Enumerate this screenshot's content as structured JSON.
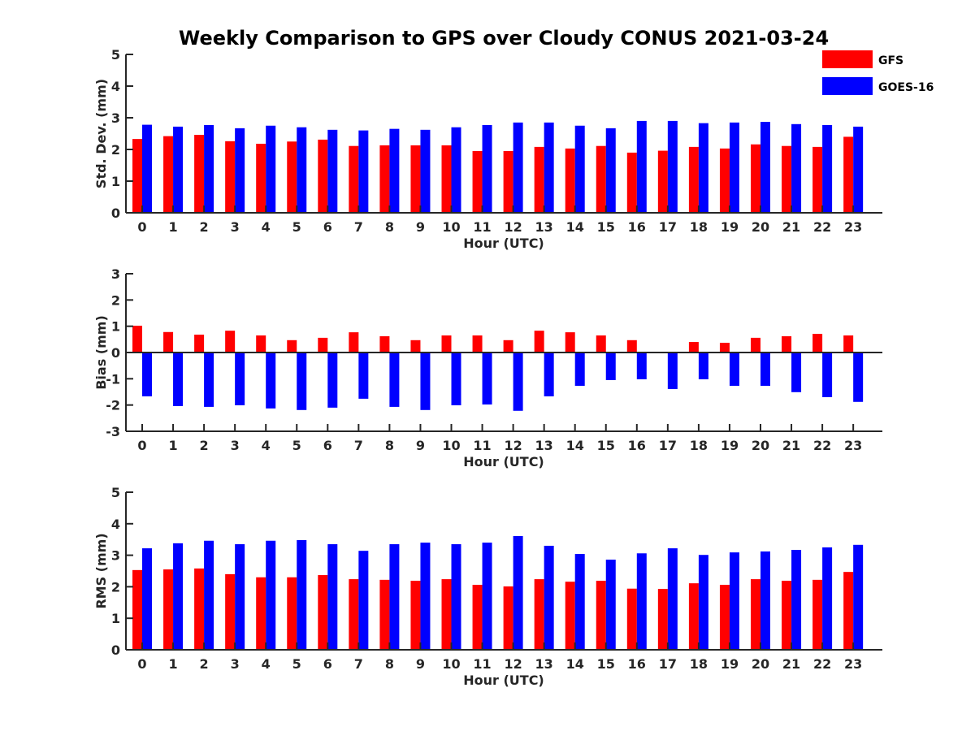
{
  "title": "Weekly Comparison to GPS over Cloudy CONUS 2021-03-24",
  "legend": [
    {
      "name": "GFS",
      "color": "#ff0000"
    },
    {
      "name": "GOES-16",
      "color": "#0000ff"
    }
  ],
  "chart_data": [
    {
      "type": "bar",
      "xlabel": "Hour (UTC)",
      "ylabel": "Std. Dev. (mm)",
      "ylim": [
        0,
        5
      ],
      "yticks": [
        0,
        1,
        2,
        3,
        4,
        5
      ],
      "categories": [
        "0",
        "1",
        "2",
        "3",
        "4",
        "5",
        "6",
        "7",
        "8",
        "9",
        "10",
        "11",
        "12",
        "13",
        "14",
        "15",
        "16",
        "17",
        "18",
        "19",
        "20",
        "21",
        "22",
        "23"
      ],
      "series": [
        {
          "name": "GFS",
          "color": "#ff0000",
          "values": [
            2.33,
            2.42,
            2.46,
            2.26,
            2.18,
            2.25,
            2.31,
            2.11,
            2.13,
            2.13,
            2.13,
            1.95,
            1.95,
            2.08,
            2.03,
            2.11,
            1.9,
            1.96,
            2.08,
            2.03,
            2.16,
            2.11,
            2.08,
            2.4
          ]
        },
        {
          "name": "GOES-16",
          "color": "#0000ff",
          "values": [
            2.78,
            2.72,
            2.77,
            2.67,
            2.75,
            2.7,
            2.62,
            2.6,
            2.65,
            2.62,
            2.7,
            2.77,
            2.85,
            2.85,
            2.75,
            2.67,
            2.9,
            2.9,
            2.83,
            2.85,
            2.87,
            2.8,
            2.77,
            2.72
          ]
        }
      ]
    },
    {
      "type": "bar",
      "xlabel": "Hour (UTC)",
      "ylabel": "Bias (mm)",
      "ylim": [
        -3,
        3
      ],
      "yticks": [
        -3,
        -2,
        -1,
        0,
        1,
        2,
        3
      ],
      "categories": [
        "0",
        "1",
        "2",
        "3",
        "4",
        "5",
        "6",
        "7",
        "8",
        "9",
        "10",
        "11",
        "12",
        "13",
        "14",
        "15",
        "16",
        "17",
        "18",
        "19",
        "20",
        "21",
        "22",
        "23"
      ],
      "series": [
        {
          "name": "GFS",
          "color": "#ff0000",
          "values": [
            1.02,
            0.78,
            0.68,
            0.83,
            0.65,
            0.47,
            0.56,
            0.77,
            0.62,
            0.47,
            0.65,
            0.65,
            0.47,
            0.83,
            0.77,
            0.65,
            0.47,
            0.02,
            0.4,
            0.37,
            0.56,
            0.62,
            0.71,
            0.65
          ]
        },
        {
          "name": "GOES-16",
          "color": "#0000ff",
          "values": [
            -1.67,
            -2.04,
            -2.07,
            -2.01,
            -2.13,
            -2.19,
            -2.1,
            -1.76,
            -2.07,
            -2.19,
            -2.01,
            -1.98,
            -2.22,
            -1.67,
            -1.27,
            -1.05,
            -1.02,
            -1.39,
            -1.02,
            -1.27,
            -1.27,
            -1.51,
            -1.7,
            -1.88
          ]
        }
      ]
    },
    {
      "type": "bar",
      "xlabel": "Hour (UTC)",
      "ylabel": "RMS (mm)",
      "ylim": [
        0,
        5
      ],
      "yticks": [
        0,
        1,
        2,
        3,
        4,
        5
      ],
      "categories": [
        "0",
        "1",
        "2",
        "3",
        "4",
        "5",
        "6",
        "7",
        "8",
        "9",
        "10",
        "11",
        "12",
        "13",
        "14",
        "15",
        "16",
        "17",
        "18",
        "19",
        "20",
        "21",
        "22",
        "23"
      ],
      "series": [
        {
          "name": "GFS",
          "color": "#ff0000",
          "values": [
            2.53,
            2.55,
            2.58,
            2.4,
            2.3,
            2.3,
            2.37,
            2.24,
            2.22,
            2.19,
            2.24,
            2.06,
            2.01,
            2.24,
            2.16,
            2.19,
            1.94,
            1.93,
            2.11,
            2.06,
            2.24,
            2.19,
            2.22,
            2.47
          ]
        },
        {
          "name": "GOES-16",
          "color": "#0000ff",
          "values": [
            3.22,
            3.38,
            3.46,
            3.35,
            3.46,
            3.48,
            3.35,
            3.14,
            3.35,
            3.4,
            3.35,
            3.4,
            3.61,
            3.3,
            3.04,
            2.86,
            3.06,
            3.22,
            3.01,
            3.09,
            3.12,
            3.17,
            3.25,
            3.33
          ]
        }
      ]
    }
  ]
}
